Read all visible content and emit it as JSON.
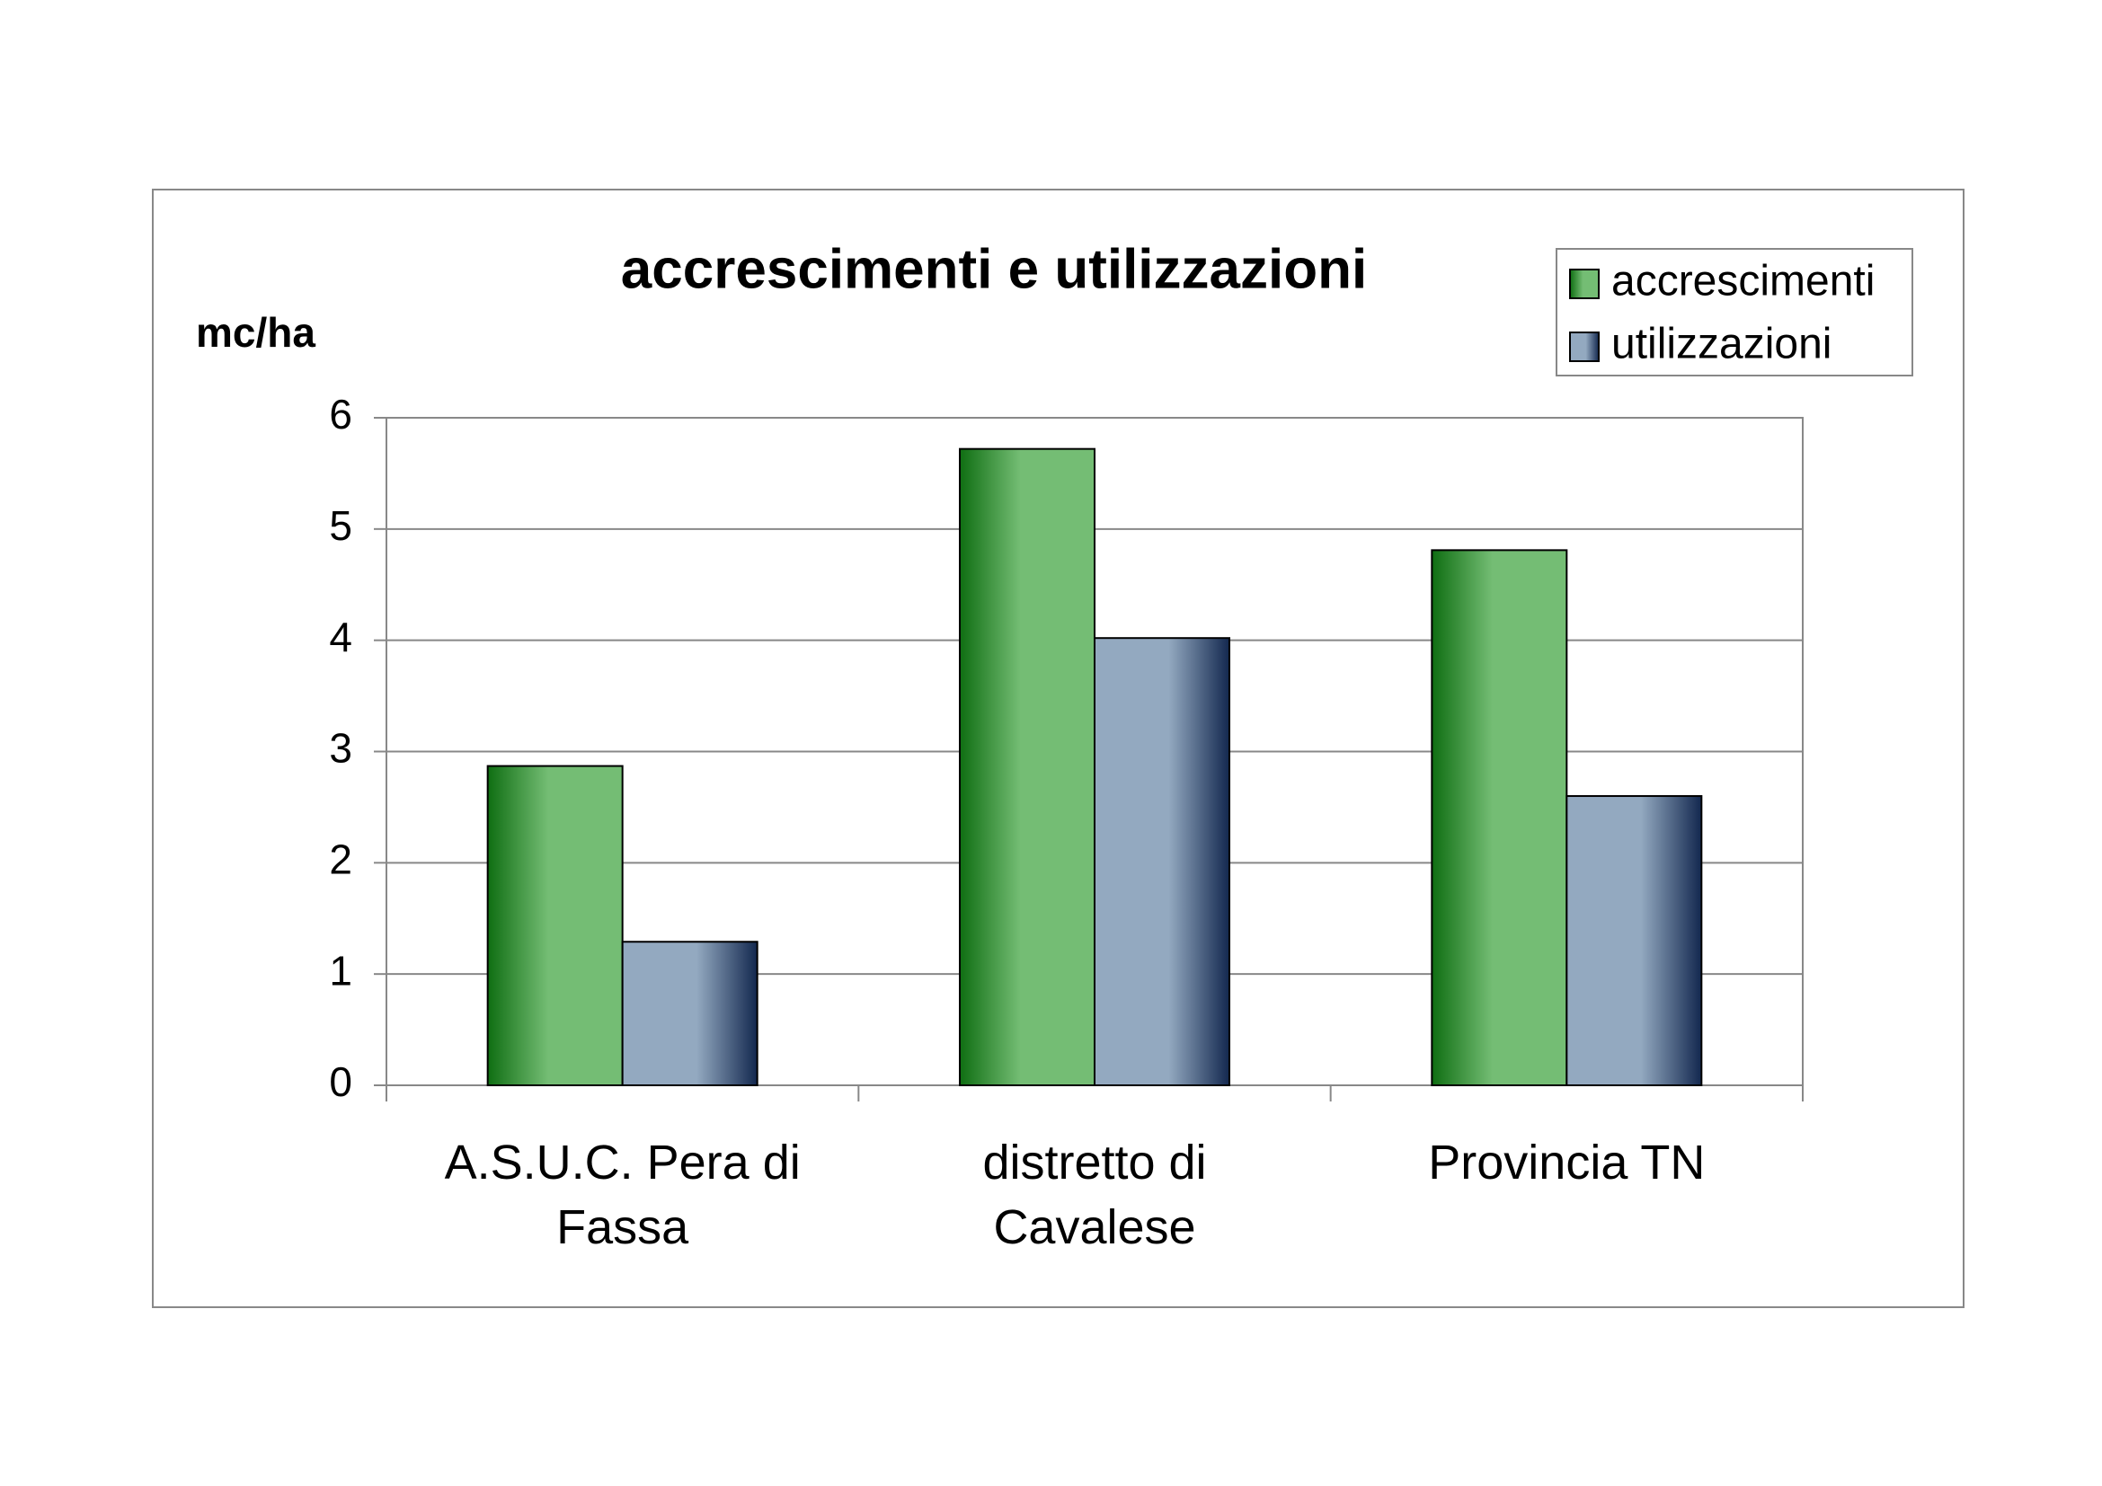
{
  "chart_data": {
    "type": "bar",
    "title": "accrescimenti e utilizzazioni",
    "y_label": "mc/ha",
    "categories": [
      "A.S.U.C. Pera di Fassa",
      "distretto di Cavalese",
      "Provincia TN"
    ],
    "series": [
      {
        "name": "accrescimenti",
        "color": "#74bd74",
        "values": [
          2.87,
          5.72,
          4.81
        ]
      },
      {
        "name": "utilizzazioni",
        "color": "#93a9c0",
        "values": [
          1.29,
          4.02,
          2.6
        ]
      }
    ],
    "ylim": [
      0,
      6
    ],
    "yticks": [
      0,
      1,
      2,
      3,
      4,
      5,
      6
    ],
    "grid": true,
    "legend": "top-right"
  }
}
